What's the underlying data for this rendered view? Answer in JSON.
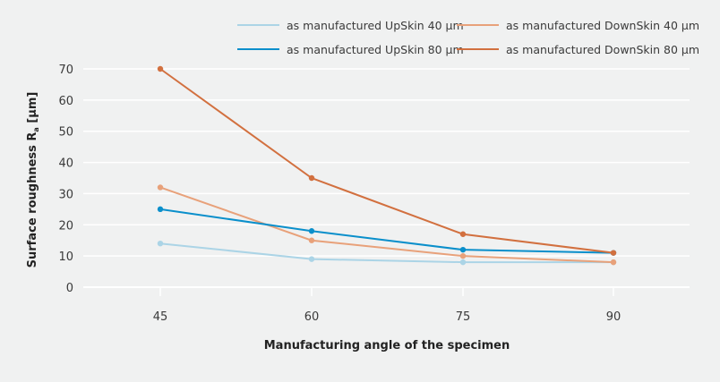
{
  "chart_data": {
    "type": "line",
    "title": "",
    "xlabel": "Manufacturing angle of the specimen",
    "ylabel": "Surface roughness Rₐ [µm]",
    "ylabel_main": "Surface roughness R",
    "ylabel_sub": "a",
    "ylabel_unit": " [µm]",
    "categories": [
      "45",
      "60",
      "75",
      "90"
    ],
    "x": [
      45,
      60,
      75,
      90
    ],
    "ylim": [
      0,
      70
    ],
    "yticks": [
      0,
      10,
      20,
      30,
      40,
      50,
      60,
      70
    ],
    "grid": true,
    "legend_position": "top-right",
    "series": [
      {
        "name": "as manufactured UpSkin 40 µm",
        "color": "#abd4e6",
        "values": [
          14,
          9,
          8,
          8
        ]
      },
      {
        "name": "as manufactured DownSkin 40 µm",
        "color": "#e8a17a",
        "values": [
          32,
          15,
          10,
          8
        ]
      },
      {
        "name": "as manufactured UpSkin 80 µm",
        "color": "#0a8fcb",
        "values": [
          25,
          18,
          12,
          11
        ]
      },
      {
        "name": "as manufactured DownSkin 80 µm",
        "color": "#d2703f",
        "values": [
          70,
          35,
          17,
          11
        ]
      }
    ]
  }
}
